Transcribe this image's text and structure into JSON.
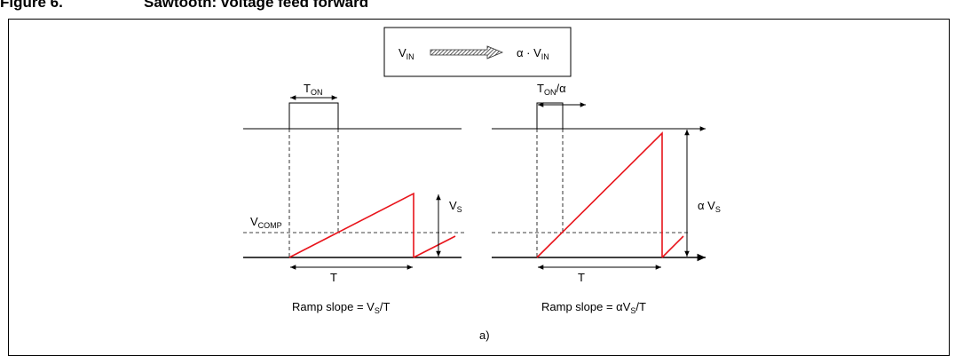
{
  "figure": {
    "label": "Figure 6.",
    "title": "Sawtooth: voltage feed forward",
    "panel": "a)"
  },
  "legend_box": {
    "input_main": "V",
    "input_sub": "IN",
    "output_prefix": "α · V",
    "output_sub": "IN"
  },
  "left": {
    "pulse_main": "T",
    "pulse_sub": "ON",
    "amp_main": "V",
    "amp_sub": "S",
    "comp_main": "V",
    "comp_sub": "COMP",
    "period": "T",
    "slope_prefix": "Ramp slope = V",
    "slope_sub": "S",
    "slope_suffix": "/T"
  },
  "right": {
    "pulse_main": "T",
    "pulse_sub": "ON",
    "pulse_suffix": "/α",
    "amp_main": "α V",
    "amp_sub": "S",
    "period": "T",
    "slope_prefix": "Ramp slope = αV",
    "slope_sub": "S",
    "slope_suffix": "/T"
  },
  "colors": {
    "ramp": "#e8141b",
    "line": "#000000"
  }
}
